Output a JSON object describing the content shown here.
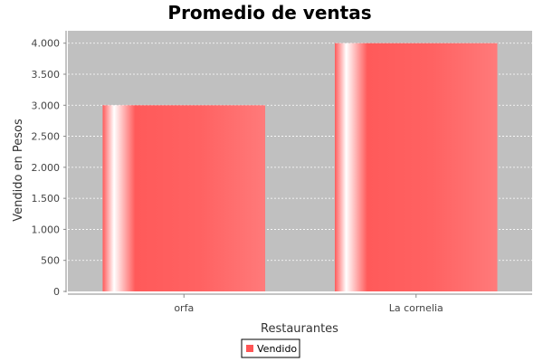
{
  "chart_data": {
    "type": "bar",
    "title": "Promedio de ventas",
    "xlabel": "Restaurantes",
    "ylabel": "Vendido en Pesos",
    "categories": [
      "orfa",
      "La cornelia"
    ],
    "series": [
      {
        "name": "Vendido",
        "values": [
          3000,
          4000
        ],
        "color": "#ff5555"
      }
    ],
    "ylim": [
      0,
      4000
    ],
    "yticks": [
      0,
      500,
      1000,
      1500,
      2000,
      2500,
      3000,
      3500,
      4000
    ],
    "ytick_labels": [
      "0",
      "500",
      "1.000",
      "1.500",
      "2.000",
      "2.500",
      "3.000",
      "3.500",
      "4.000"
    ],
    "grid": true,
    "legend_position": "bottom",
    "plot_background": "#c0c0c0"
  }
}
